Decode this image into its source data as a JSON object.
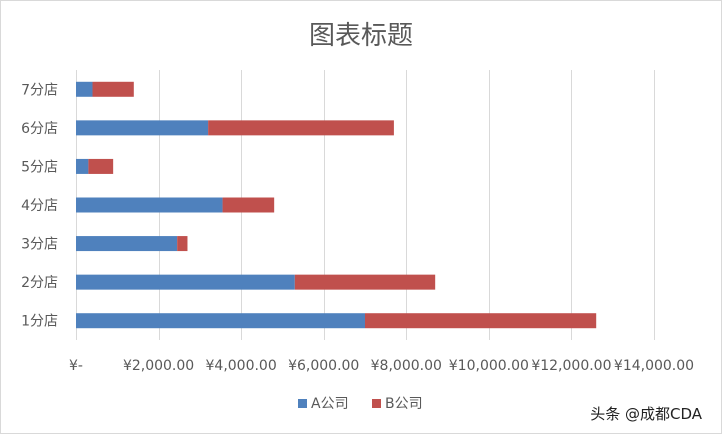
{
  "chart_data": {
    "type": "bar",
    "orientation": "horizontal",
    "stacked": true,
    "title": "图表标题",
    "categories": [
      "1分店",
      "2分店",
      "3分店",
      "4分店",
      "5分店",
      "6分店",
      "7分店"
    ],
    "series": [
      {
        "name": "A公司",
        "values": [
          7000,
          5300,
          2450,
          3550,
          300,
          3200,
          400
        ]
      },
      {
        "name": "B公司",
        "values": [
          5600,
          3400,
          250,
          1250,
          600,
          4500,
          1000
        ]
      }
    ],
    "xlim": [
      0,
      14000
    ],
    "x_ticks": [
      "¥-",
      "¥2,000.00",
      "¥4,000.00",
      "¥6,000.00",
      "¥8,000.00",
      "¥10,000.00",
      "¥12,000.00",
      "¥14,000.00"
    ],
    "grid": true,
    "legend_position": "bottom",
    "colors": {
      "A公司": "#4f81bd",
      "B公司": "#c0504d",
      "grid": "#d9d9d9",
      "text": "#595959"
    }
  },
  "watermark": "头条 @成都CDA"
}
